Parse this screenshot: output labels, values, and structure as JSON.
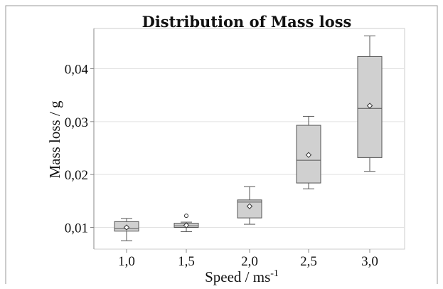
{
  "chart_data": {
    "type": "box",
    "title": "Distribution of Mass loss",
    "xlabel": "Speed / ms",
    "xlabel_superscript": "-1",
    "ylabel": "Mass loss / g",
    "categories": [
      "1,0",
      "1,5",
      "2,0",
      "2,5",
      "3,0"
    ],
    "y_ticks": [
      {
        "value": 0.01,
        "label": "0,01"
      },
      {
        "value": 0.02,
        "label": "0,02"
      },
      {
        "value": 0.03,
        "label": "0,03"
      },
      {
        "value": 0.04,
        "label": "0,04"
      }
    ],
    "ylim": [
      0.0059,
      0.0476
    ],
    "grid": "horizontal",
    "boxes": [
      {
        "category": "1,0",
        "whisker_low": 0.0075,
        "q1": 0.0093,
        "median": 0.0098,
        "q3": 0.0111,
        "whisker_high": 0.0117,
        "mean": 0.01,
        "outliers": []
      },
      {
        "category": "1,5",
        "whisker_low": 0.0092,
        "q1": 0.01,
        "median": 0.0103,
        "q3": 0.0108,
        "whisker_high": 0.011,
        "mean": 0.0104,
        "outliers": [
          0.0122
        ]
      },
      {
        "category": "2,0",
        "whisker_low": 0.0106,
        "q1": 0.0118,
        "median": 0.0148,
        "q3": 0.0152,
        "whisker_high": 0.0177,
        "mean": 0.014,
        "outliers": []
      },
      {
        "category": "2,5",
        "whisker_low": 0.0173,
        "q1": 0.0184,
        "median": 0.0227,
        "q3": 0.0293,
        "whisker_high": 0.031,
        "mean": 0.0237,
        "outliers": []
      },
      {
        "category": "3,0",
        "whisker_low": 0.0206,
        "q1": 0.0232,
        "median": 0.0325,
        "q3": 0.0423,
        "whisker_high": 0.0462,
        "mean": 0.033,
        "outliers": []
      }
    ],
    "colors": {
      "box_fill": "#d0d0d0",
      "box_stroke": "#555555",
      "grid": "#e2e2e2",
      "axis": "#888888",
      "frame": "#999999"
    }
  }
}
